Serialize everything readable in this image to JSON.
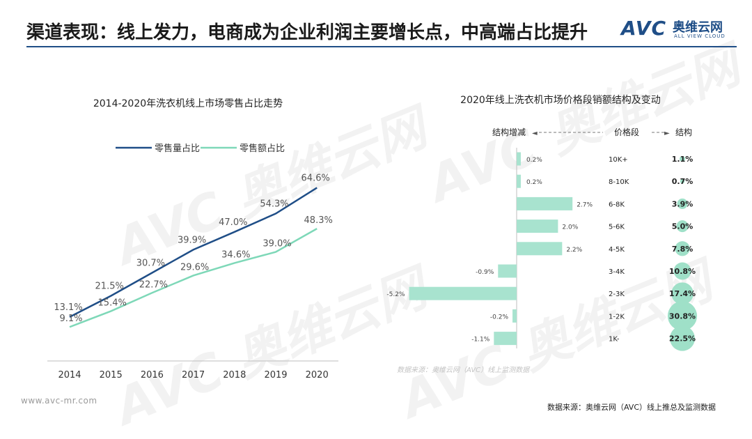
{
  "header": {
    "title": "渠道表现：线上发力，电商成为企业利润主要增长点，中高端占比提升"
  },
  "logo": {
    "mark": "AVC",
    "cn": "奥维云网",
    "en": "ALL VIEW CLOUD"
  },
  "watermark": {
    "text": "AVC 奥维云网"
  },
  "line_chart": {
    "title": "2014-2020年洗衣机线上市场零售占比走势",
    "legend": [
      "零售量占比",
      "零售额占比"
    ]
  },
  "bar_chart": {
    "title": "2020年线上洗衣机市场价格段销额结构及变动",
    "col_change": "结构增减",
    "col_segment": "价格段",
    "col_structure": "结构",
    "inner_source": "数据来源：奥维云网（AVC）线上监测数据"
  },
  "footer": {
    "website": "www.avc-mr.com",
    "source": "数据来源：奥维云网（AVC）线上推总及监测数据"
  },
  "colors": {
    "series1": "#1f4e87",
    "series2": "#7ed8b8",
    "bar": "#a8e3cf",
    "bubble": "#9fe0c8"
  },
  "chart_data": [
    {
      "type": "line",
      "title": "2014-2020年洗衣机线上市场零售占比走势",
      "x": [
        "2014",
        "2015",
        "2016",
        "2017",
        "2018",
        "2019",
        "2020"
      ],
      "series": [
        {
          "name": "零售量占比",
          "values": [
            13.1,
            21.5,
            30.7,
            39.9,
            47.0,
            54.3,
            64.6
          ],
          "labels": [
            "13.1%",
            "21.5%",
            "30.7%",
            "39.9%",
            "47.0%",
            "54.3%",
            "64.6%"
          ]
        },
        {
          "name": "零售额占比",
          "values": [
            9.1,
            15.4,
            22.7,
            29.6,
            34.6,
            39.0,
            48.3
          ],
          "labels": [
            "9.1%",
            "15.4%",
            "22.7%",
            "29.6%",
            "34.6%",
            "39.0%",
            "48.3%"
          ]
        }
      ],
      "ylim": [
        0,
        70
      ],
      "legend": "top"
    },
    {
      "type": "bar",
      "title": "2020年线上洗衣机市场价格段销额结构及变动",
      "categories": [
        "10K+",
        "8-10K",
        "6-8K",
        "5-6K",
        "4-5K",
        "3-4K",
        "2-3K",
        "1-2K",
        "1K-"
      ],
      "series": [
        {
          "name": "结构增减",
          "values": [
            0.2,
            0.2,
            2.7,
            2.0,
            2.2,
            -0.9,
            -5.2,
            -0.2,
            -1.1
          ],
          "labels": [
            "0.2%",
            "0.2%",
            "2.7%",
            "2.0%",
            "2.2%",
            "-0.9%",
            "-5.2%",
            "-0.2%",
            "-1.1%"
          ]
        },
        {
          "name": "结构",
          "values": [
            1.1,
            0.7,
            3.9,
            5.0,
            7.8,
            10.8,
            17.4,
            30.8,
            22.5
          ],
          "labels": [
            "1.1%",
            "0.7%",
            "3.9%",
            "5.0%",
            "7.8%",
            "10.8%",
            "17.4%",
            "30.8%",
            "22.5%"
          ]
        }
      ]
    }
  ]
}
